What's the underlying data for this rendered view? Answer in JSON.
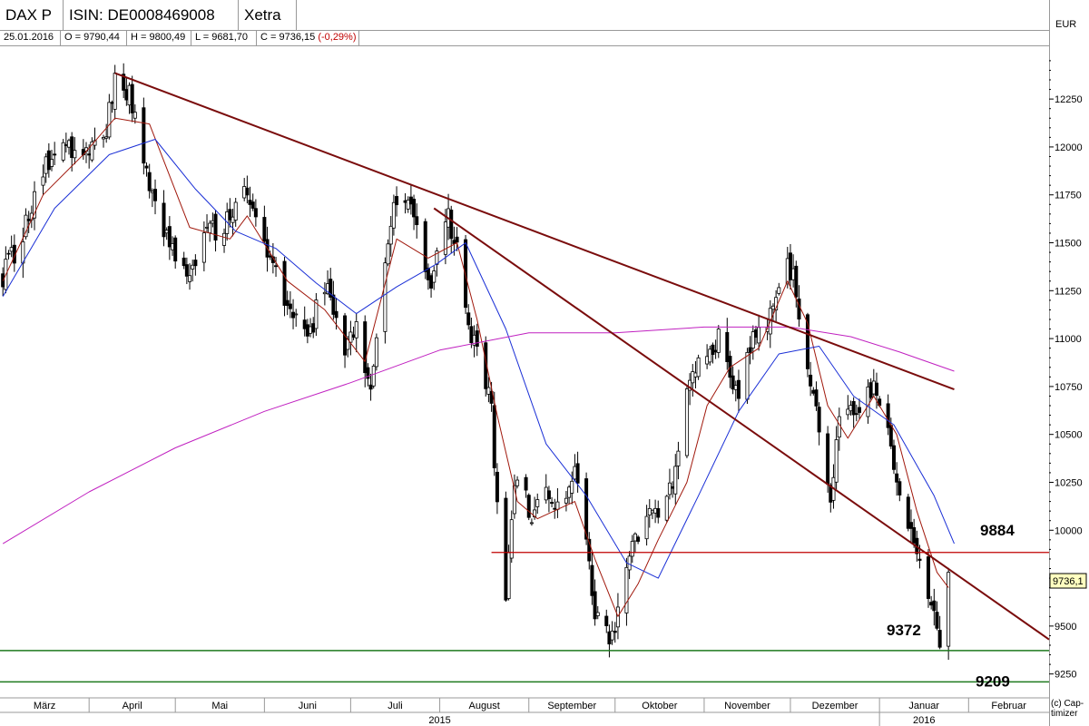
{
  "header": {
    "symbol": "DAX P",
    "isin": "ISIN: DE0008469008",
    "exchange": "Xetra",
    "currency": "EUR"
  },
  "ohlc": {
    "date": "25.01.2016",
    "open": "O = 9790,44",
    "high": "H = 9800,49",
    "low": "L = 9681,70",
    "close": "C = 9736,15",
    "change": "(-0,29%)"
  },
  "footer": {
    "year_2015": "2015",
    "year_2016": "2016",
    "watermark": "(c) Cap-\ntimizer"
  },
  "colors": {
    "candle": "#000000",
    "ma_fast": "#a0180c",
    "ma_mid": "#1a2fd6",
    "ma_slow": "#c020c0",
    "trendline": "#7a0c0c",
    "resistance": "#c00000",
    "support": "#1f7a1f"
  },
  "chart_data": {
    "type": "candlestick",
    "instrument": "DAX P",
    "x_range": [
      "2015-03-01",
      "2016-02-29"
    ],
    "y_range": [
      9130,
      12530
    ],
    "y_ticks": [
      9250,
      9500,
      9750,
      10000,
      10250,
      10500,
      10750,
      11000,
      11250,
      11500,
      11750,
      12000,
      12250
    ],
    "y_tick_labels": [
      "9250",
      "9500",
      "9750",
      "10000",
      "10250",
      "10500",
      "10750",
      "11000",
      "11250",
      "11500",
      "11750",
      "12000",
      "12250"
    ],
    "months": [
      {
        "label": "März",
        "start": "2015-03-01"
      },
      {
        "label": "April",
        "start": "2015-04-01"
      },
      {
        "label": "Mai",
        "start": "2015-05-01"
      },
      {
        "label": "Juni",
        "start": "2015-06-01"
      },
      {
        "label": "Juli",
        "start": "2015-07-01"
      },
      {
        "label": "August",
        "start": "2015-08-01"
      },
      {
        "label": "September",
        "start": "2015-09-01"
      },
      {
        "label": "Oktober",
        "start": "2015-10-01"
      },
      {
        "label": "November",
        "start": "2015-11-01"
      },
      {
        "label": "Dezember",
        "start": "2015-12-01"
      },
      {
        "label": "Januar",
        "start": "2016-01-01"
      },
      {
        "label": "Februar",
        "start": "2016-02-01"
      }
    ],
    "price_path": [
      [
        "2015-03-02",
        11320
      ],
      [
        "2015-03-09",
        11560
      ],
      [
        "2015-03-16",
        11900
      ],
      [
        "2015-03-23",
        12010
      ],
      [
        "2015-03-30",
        11950
      ],
      [
        "2015-04-07",
        12100
      ],
      [
        "2015-04-10",
        12375
      ],
      [
        "2015-04-15",
        12290
      ],
      [
        "2015-04-22",
        11820
      ],
      [
        "2015-04-30",
        11460
      ],
      [
        "2015-05-06",
        11340
      ],
      [
        "2015-05-13",
        11550
      ],
      [
        "2015-05-20",
        11620
      ],
      [
        "2015-05-26",
        11780
      ],
      [
        "2015-06-02",
        11450
      ],
      [
        "2015-06-09",
        11160
      ],
      [
        "2015-06-16",
        10980
      ],
      [
        "2015-06-22",
        11300
      ],
      [
        "2015-06-29",
        10950
      ],
      [
        "2015-07-03",
        11060
      ],
      [
        "2015-07-08",
        10700
      ],
      [
        "2015-07-13",
        11450
      ],
      [
        "2015-07-17",
        11750
      ],
      [
        "2015-07-23",
        11620
      ],
      [
        "2015-07-28",
        11250
      ],
      [
        "2015-08-04",
        11630
      ],
      [
        "2015-08-07",
        11500
      ],
      [
        "2015-08-11",
        11040
      ],
      [
        "2015-08-14",
        11000
      ],
      [
        "2015-08-19",
        10600
      ],
      [
        "2015-08-21",
        10120
      ],
      [
        "2015-08-24",
        9650
      ],
      [
        "2015-08-27",
        10280
      ],
      [
        "2015-09-02",
        10100
      ],
      [
        "2015-09-07",
        10260
      ],
      [
        "2015-09-11",
        10100
      ],
      [
        "2015-09-17",
        10320
      ],
      [
        "2015-09-21",
        9950
      ],
      [
        "2015-09-24",
        9530
      ],
      [
        "2015-09-29",
        9450
      ],
      [
        "2015-10-02",
        9550
      ],
      [
        "2015-10-06",
        9900
      ],
      [
        "2015-10-12",
        10100
      ],
      [
        "2015-10-16",
        10110
      ],
      [
        "2015-10-21",
        10240
      ],
      [
        "2015-10-26",
        10750
      ],
      [
        "2015-11-02",
        10900
      ],
      [
        "2015-11-06",
        10990
      ],
      [
        "2015-11-13",
        10700
      ],
      [
        "2015-11-19",
        11060
      ],
      [
        "2015-11-24",
        11100
      ],
      [
        "2015-11-30",
        11400
      ],
      [
        "2015-12-03",
        11250
      ],
      [
        "2015-12-07",
        10850
      ],
      [
        "2015-12-11",
        10500
      ],
      [
        "2015-12-15",
        10200
      ],
      [
        "2015-12-18",
        10600
      ],
      [
        "2015-12-23",
        10640
      ],
      [
        "2015-12-30",
        10760
      ],
      [
        "2016-01-04",
        10600
      ],
      [
        "2016-01-07",
        10200
      ],
      [
        "2016-01-12",
        9950
      ],
      [
        "2016-01-15",
        9800
      ],
      [
        "2016-01-20",
        9600
      ],
      [
        "2016-01-22",
        9450
      ],
      [
        "2016-01-25",
        9736
      ]
    ],
    "series": [
      {
        "name": "",
        "kind": "ma_fast",
        "points": [
          [
            "2015-03-02",
            11300
          ],
          [
            "2015-03-16",
            11750
          ],
          [
            "2015-03-30",
            11960
          ],
          [
            "2015-04-10",
            12150
          ],
          [
            "2015-04-22",
            12120
          ],
          [
            "2015-05-06",
            11580
          ],
          [
            "2015-05-20",
            11520
          ],
          [
            "2015-05-26",
            11640
          ],
          [
            "2015-06-09",
            11300
          ],
          [
            "2015-06-22",
            11150
          ],
          [
            "2015-07-06",
            10880
          ],
          [
            "2015-07-17",
            11520
          ],
          [
            "2015-07-28",
            11420
          ],
          [
            "2015-08-07",
            11500
          ],
          [
            "2015-08-14",
            11100
          ],
          [
            "2015-08-21",
            10600
          ],
          [
            "2015-08-28",
            10150
          ],
          [
            "2015-09-04",
            10060
          ],
          [
            "2015-09-17",
            10150
          ],
          [
            "2015-09-24",
            9850
          ],
          [
            "2015-10-02",
            9550
          ],
          [
            "2015-10-09",
            9720
          ],
          [
            "2015-10-16",
            9950
          ],
          [
            "2015-10-26",
            10250
          ],
          [
            "2015-11-02",
            10650
          ],
          [
            "2015-11-10",
            10850
          ],
          [
            "2015-11-20",
            10950
          ],
          [
            "2015-11-30",
            11300
          ],
          [
            "2015-12-07",
            11080
          ],
          [
            "2015-12-14",
            10650
          ],
          [
            "2015-12-21",
            10480
          ],
          [
            "2015-12-30",
            10700
          ],
          [
            "2016-01-07",
            10500
          ],
          [
            "2016-01-14",
            10100
          ],
          [
            "2016-01-21",
            9780
          ],
          [
            "2016-01-25",
            9700
          ]
        ]
      },
      {
        "name": "",
        "kind": "ma_mid",
        "points": [
          [
            "2015-03-02",
            11220
          ],
          [
            "2015-03-20",
            11680
          ],
          [
            "2015-04-08",
            11960
          ],
          [
            "2015-04-24",
            12040
          ],
          [
            "2015-05-08",
            11780
          ],
          [
            "2015-05-22",
            11560
          ],
          [
            "2015-06-05",
            11470
          ],
          [
            "2015-06-19",
            11290
          ],
          [
            "2015-07-03",
            11130
          ],
          [
            "2015-07-17",
            11270
          ],
          [
            "2015-07-31",
            11390
          ],
          [
            "2015-08-10",
            11500
          ],
          [
            "2015-08-24",
            11050
          ],
          [
            "2015-09-07",
            10450
          ],
          [
            "2015-09-21",
            10180
          ],
          [
            "2015-10-05",
            9830
          ],
          [
            "2015-10-16",
            9750
          ],
          [
            "2015-10-30",
            10180
          ],
          [
            "2015-11-13",
            10620
          ],
          [
            "2015-11-27",
            10920
          ],
          [
            "2015-12-11",
            10960
          ],
          [
            "2015-12-23",
            10700
          ],
          [
            "2016-01-06",
            10550
          ],
          [
            "2016-01-20",
            10180
          ],
          [
            "2016-01-27",
            9930
          ]
        ]
      },
      {
        "name": "",
        "kind": "ma_slow",
        "points": [
          [
            "2015-03-02",
            9930
          ],
          [
            "2015-04-01",
            10200
          ],
          [
            "2015-05-01",
            10430
          ],
          [
            "2015-06-01",
            10620
          ],
          [
            "2015-07-01",
            10770
          ],
          [
            "2015-08-01",
            10940
          ],
          [
            "2015-09-01",
            11030
          ],
          [
            "2015-10-01",
            11030
          ],
          [
            "2015-11-01",
            11060
          ],
          [
            "2015-12-01",
            11060
          ],
          [
            "2015-12-22",
            11010
          ],
          [
            "2016-01-08",
            10930
          ],
          [
            "2016-01-27",
            10830
          ]
        ]
      }
    ],
    "trendlines": [
      {
        "kind": "trendline",
        "from": [
          "2015-04-10",
          12385
        ],
        "to": [
          "2016-01-27",
          10735
        ]
      },
      {
        "kind": "trendline",
        "from": [
          "2015-07-30",
          11680
        ],
        "to": [
          "2016-02-29",
          9430
        ]
      }
    ],
    "levels": [
      {
        "kind": "resistance",
        "value": 9884,
        "label": "9884",
        "from": "2015-08-19"
      },
      {
        "kind": "support",
        "value": 9372,
        "label": "9372",
        "from": "2015-03-01"
      },
      {
        "kind": "support",
        "value": 9209,
        "label": "9209",
        "from": "2015-03-01"
      }
    ],
    "last_price_label": "9736,1"
  }
}
